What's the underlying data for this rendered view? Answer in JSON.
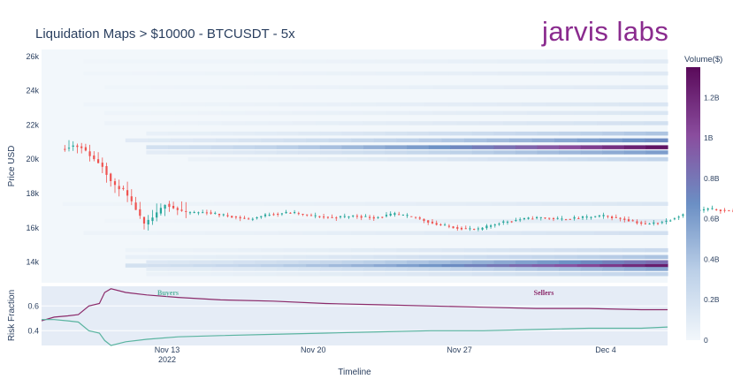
{
  "header": {
    "title": "Liquidation Maps > $10000 - BTCUSDT - 5x",
    "brand": "jarvis labs"
  },
  "colors": {
    "up": "#26a69a",
    "down": "#ef5350",
    "buyers": "#5ab4a0",
    "sellers": "#8b2a6a",
    "heat_low": "#f2f7fb",
    "heat_mid": "#6b8fc4",
    "heat_high": "#5a0a5a",
    "panel_bg": "#e5ecf6"
  },
  "chart_data": [
    {
      "type": "heatmap",
      "title": "Liquidation Maps > $10000 - BTCUSDT - 5x",
      "xlabel": "Timeline",
      "ylabel": "Price USD",
      "x_range": [
        "2022-11-08",
        "2022-12-07"
      ],
      "ylim": [
        12800,
        26400
      ],
      "y_ticks": [
        14000,
        16000,
        18000,
        20000,
        22000,
        24000,
        26000
      ],
      "y_tick_labels": [
        "14k",
        "16k",
        "18k",
        "20k",
        "22k",
        "24k",
        "26k"
      ],
      "x_ticks": [
        "2022-11-13",
        "2022-11-20",
        "2022-11-27",
        "2022-12-04"
      ],
      "x_tick_labels": [
        "Nov 13",
        "Nov 20",
        "Nov 27",
        "Dec 4"
      ],
      "x_tick_sublabel": "2022",
      "colorbar": {
        "title": "Volume($)",
        "range": [
          0,
          1.35
        ],
        "ticks": [
          0,
          0.2,
          0.4,
          0.6,
          0.8,
          1.0,
          1.2
        ],
        "tick_labels": [
          "0",
          "0.2B",
          "0.4B",
          "0.6B",
          "0.8B",
          "1B",
          "1.2B"
        ]
      },
      "heat_bands": [
        {
          "price": 13800,
          "start": "2022-11-11",
          "max": 1.25
        },
        {
          "price": 14000,
          "start": "2022-11-12",
          "max": 0.85
        },
        {
          "price": 13600,
          "start": "2022-11-12",
          "max": 0.55
        },
        {
          "price": 14300,
          "start": "2022-11-11",
          "max": 0.4
        },
        {
          "price": 13300,
          "start": "2022-11-12",
          "max": 0.3
        },
        {
          "price": 14700,
          "start": "2022-11-11",
          "max": 0.25
        },
        {
          "price": 20700,
          "start": "2022-11-12",
          "max": 1.3
        },
        {
          "price": 20400,
          "start": "2022-11-12",
          "max": 0.6
        },
        {
          "price": 21100,
          "start": "2022-11-11",
          "max": 0.7
        },
        {
          "price": 21500,
          "start": "2022-11-12",
          "max": 0.4
        },
        {
          "price": 20000,
          "start": "2022-11-14",
          "max": 0.3
        },
        {
          "price": 22100,
          "start": "2022-11-10",
          "max": 0.2
        },
        {
          "price": 22700,
          "start": "2022-11-10",
          "max": 0.15
        },
        {
          "price": 23200,
          "start": "2022-11-09",
          "max": 0.15
        },
        {
          "price": 24200,
          "start": "2022-11-10",
          "max": 0.12
        },
        {
          "price": 25000,
          "start": "2022-11-09",
          "max": 0.12
        },
        {
          "price": 25700,
          "start": "2022-11-09",
          "max": 0.1
        },
        {
          "price": 17400,
          "start": "2022-11-08",
          "max": 0.15
        },
        {
          "price": 15700,
          "start": "2022-11-09",
          "max": 0.2
        },
        {
          "price": 16400,
          "start": "2022-11-10",
          "max": 0.12
        }
      ],
      "price_path": [
        [
          "2022-11-08",
          20600
        ],
        [
          "2022-11-08.6",
          20800
        ],
        [
          "2022-11-09",
          20700
        ],
        [
          "2022-11-09.5",
          20100
        ],
        [
          "2022-11-10",
          19600
        ],
        [
          "2022-11-10.5",
          18500
        ],
        [
          "2022-11-11",
          18200
        ],
        [
          "2022-11-11.5",
          17300
        ],
        [
          "2022-11-12",
          16200
        ],
        [
          "2022-11-12.5",
          16700
        ],
        [
          "2022-11-13",
          17400
        ],
        [
          "2022-11-13.5",
          17100
        ],
        [
          "2022-11-14",
          16900
        ],
        [
          "2022-11-15",
          16900
        ],
        [
          "2022-11-16",
          16700
        ],
        [
          "2022-11-17",
          16500
        ],
        [
          "2022-11-18",
          16800
        ],
        [
          "2022-11-19",
          16900
        ],
        [
          "2022-11-20",
          16700
        ],
        [
          "2022-11-21",
          16600
        ],
        [
          "2022-11-22",
          16700
        ],
        [
          "2022-11-23",
          16600
        ],
        [
          "2022-11-24",
          16800
        ],
        [
          "2022-11-25",
          16600
        ],
        [
          "2022-11-26",
          16200
        ],
        [
          "2022-11-27",
          16000
        ],
        [
          "2022-11-28",
          15900
        ],
        [
          "2022-11-29",
          16300
        ],
        [
          "2022-11-30",
          16500
        ],
        [
          "2022-12-01",
          16600
        ],
        [
          "2022-12-02",
          16500
        ],
        [
          "2022-12-03",
          16600
        ],
        [
          "2022-12-04",
          16700
        ],
        [
          "2022-12-05",
          16500
        ],
        [
          "2022-12-06",
          16200
        ],
        [
          "2022-12-07",
          16400
        ],
        [
          "2022-12-08",
          16900
        ],
        [
          "2022-12-09",
          17100
        ],
        [
          "2022-12-10",
          17000
        ],
        [
          "2022-12-11",
          16900
        ],
        [
          "2022-12-12",
          17000
        ],
        [
          "2022-12-13",
          17300
        ],
        [
          "2022-12-14",
          17000
        ]
      ]
    },
    {
      "type": "line",
      "ylabel": "Risk Fraction",
      "ylim": [
        0.28,
        0.76
      ],
      "y_ticks": [
        0.4,
        0.6
      ],
      "y_tick_labels": [
        "0.4",
        "0.6"
      ],
      "annotations": [
        "Buyers",
        "Sellers"
      ],
      "series": [
        {
          "name": "Sellers",
          "points": [
            [
              0,
              0.48
            ],
            [
              1.2,
              0.51
            ],
            [
              2.5,
              0.52
            ],
            [
              3.5,
              0.53
            ],
            [
              4.5,
              0.6
            ],
            [
              5.5,
              0.62
            ],
            [
              6.0,
              0.71
            ],
            [
              6.6,
              0.74
            ],
            [
              8,
              0.71
            ],
            [
              10,
              0.69
            ],
            [
              13,
              0.67
            ],
            [
              17,
              0.65
            ],
            [
              22,
              0.64
            ],
            [
              27,
              0.62
            ],
            [
              32,
              0.61
            ],
            [
              37,
              0.6
            ],
            [
              42,
              0.59
            ],
            [
              47,
              0.58
            ],
            [
              52,
              0.58
            ],
            [
              57,
              0.57
            ],
            [
              59.5,
              0.57
            ]
          ]
        },
        {
          "name": "Buyers",
          "points": [
            [
              0,
              0.49
            ],
            [
              1.2,
              0.49
            ],
            [
              2.5,
              0.48
            ],
            [
              3.5,
              0.47
            ],
            [
              4.5,
              0.4
            ],
            [
              5.5,
              0.38
            ],
            [
              6.0,
              0.32
            ],
            [
              6.6,
              0.28
            ],
            [
              8,
              0.31
            ],
            [
              10,
              0.33
            ],
            [
              13,
              0.35
            ],
            [
              17,
              0.36
            ],
            [
              22,
              0.37
            ],
            [
              27,
              0.38
            ],
            [
              32,
              0.39
            ],
            [
              37,
              0.4
            ],
            [
              42,
              0.4
            ],
            [
              47,
              0.41
            ],
            [
              52,
              0.42
            ],
            [
              57,
              0.42
            ],
            [
              59.5,
              0.43
            ]
          ]
        }
      ]
    }
  ]
}
